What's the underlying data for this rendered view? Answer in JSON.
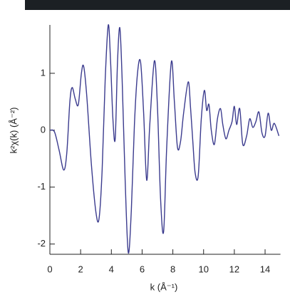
{
  "chart_data": {
    "type": "line",
    "xlabel": "k (Å⁻¹)",
    "ylabel": "k²χ(k) (Å⁻²)",
    "x": [
      0,
      0.3,
      0.6,
      0.9,
      1.1,
      1.3,
      1.45,
      1.65,
      1.85,
      2.05,
      2.2,
      2.4,
      2.7,
      3.0,
      3.2,
      3.4,
      3.6,
      3.8,
      3.95,
      4.1,
      4.25,
      4.4,
      4.55,
      4.7,
      4.9,
      5.1,
      5.3,
      5.5,
      5.7,
      5.9,
      6.1,
      6.3,
      6.5,
      6.8,
      7.0,
      7.2,
      7.4,
      7.6,
      7.9,
      8.1,
      8.3,
      8.5,
      8.7,
      9.0,
      9.15,
      9.3,
      9.45,
      9.65,
      9.85,
      10.05,
      10.2,
      10.35,
      10.5,
      10.7,
      10.9,
      11.1,
      11.25,
      11.45,
      11.65,
      11.85,
      12.0,
      12.15,
      12.35,
      12.55,
      12.8,
      13.0,
      13.2,
      13.4,
      13.6,
      13.8,
      14.0,
      14.2,
      14.4,
      14.6,
      14.9
    ],
    "values": [
      0,
      -0.03,
      -0.35,
      -0.7,
      -0.4,
      0.5,
      0.75,
      0.55,
      0.45,
      1.0,
      1.12,
      0.6,
      -0.6,
      -1.45,
      -1.55,
      -0.7,
      0.9,
      1.85,
      1.2,
      0.2,
      -0.15,
      1.2,
      1.8,
      0.9,
      -0.9,
      -2.15,
      -1.4,
      0.1,
      1.0,
      1.2,
      0.3,
      -0.88,
      0.1,
      1.22,
      0.4,
      -1.2,
      -1.78,
      -0.3,
      1.2,
      0.5,
      -0.3,
      -0.2,
      0.3,
      0.85,
      0.4,
      -0.2,
      -0.75,
      -0.8,
      0.2,
      0.7,
      0.35,
      0.45,
      0.0,
      -0.25,
      0.2,
      0.38,
      0.1,
      -0.15,
      0.0,
      0.15,
      0.42,
      0.1,
      0.38,
      -0.25,
      -0.1,
      0.2,
      0.05,
      0.15,
      0.32,
      -0.05,
      -0.1,
      0.3,
      0.0,
      0.12,
      -0.1
    ],
    "color": "#3b3b8e",
    "xlim": [
      0,
      15
    ],
    "ylim": [
      -2.18,
      1.85
    ],
    "xticks": [
      0,
      2,
      4,
      6,
      8,
      10,
      12,
      14
    ],
    "yticks": [
      -2,
      -1,
      0,
      1
    ]
  }
}
